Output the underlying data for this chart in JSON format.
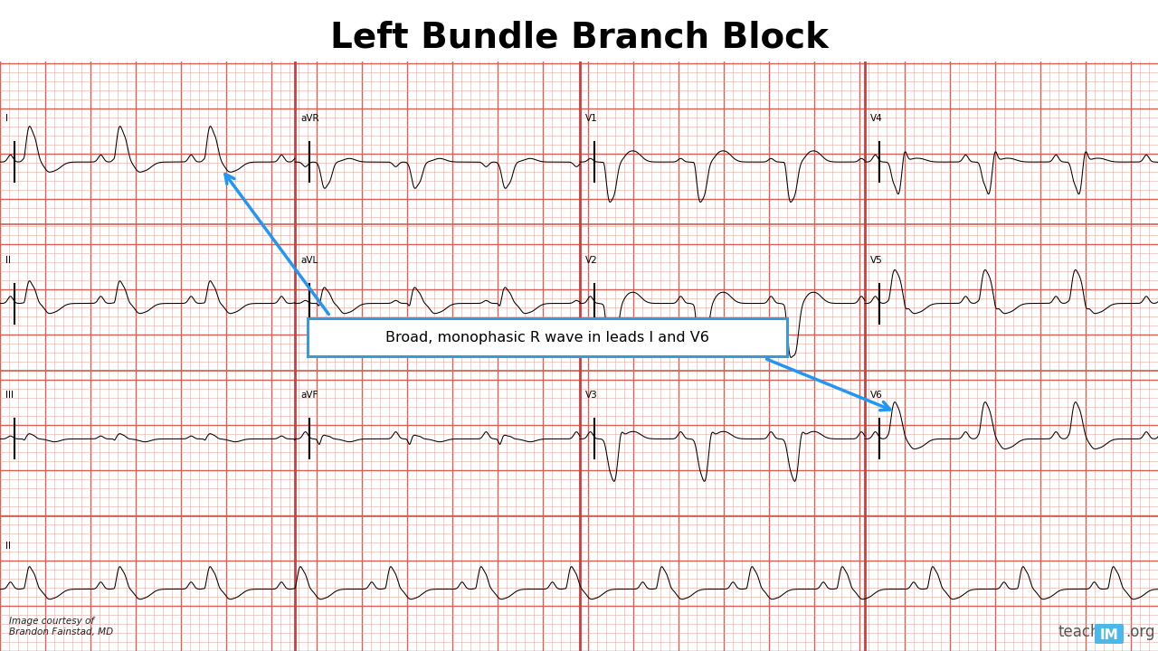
{
  "title": "Left Bundle Branch Block",
  "title_fontsize": 28,
  "title_fontweight": "bold",
  "bg_color": "#f2c4be",
  "grid_minor_color": "#e5a8a0",
  "grid_major_color": "#d96055",
  "annotation_text": "Broad, monophasic R wave in leads I and V6",
  "annotation_box_color": "#ffffff",
  "annotation_border_color": "#3a9ad9",
  "arrow_color": "#2196F3",
  "credit_text": "Image courtesy of\nBrandon Fainstad, MD",
  "teachim_text": "teach",
  "teachim_im": "IM",
  "teachim_org": ".org",
  "im_bg_color": "#4ab8e8",
  "col_divider_color": "#c84040",
  "white_strip_color": "#f5f0ee",
  "row_divider_color": "#d06050"
}
